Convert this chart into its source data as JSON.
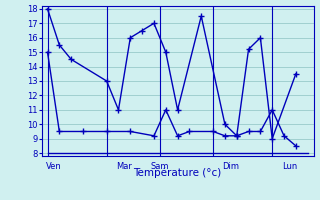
{
  "title": "Température (°c)",
  "bg_color": "#d0f0f0",
  "grid_color": "#a0d0d0",
  "line_color": "#0000bb",
  "ylim": [
    7.8,
    18.2
  ],
  "yticks": [
    8,
    9,
    10,
    11,
    12,
    13,
    14,
    15,
    16,
    17,
    18
  ],
  "x_labels": [
    "Ven",
    "",
    "Mar",
    "Sam",
    "",
    "Dim",
    "",
    "Lun"
  ],
  "x_tick_pos": [
    0,
    3,
    6,
    9,
    12,
    15,
    18,
    21
  ],
  "x_day_labels": [
    "Ven",
    "Mar",
    "Sam",
    "Dim",
    "Lun"
  ],
  "x_day_pos": [
    0.5,
    6.5,
    9.5,
    15.5,
    20.5
  ],
  "xlim": [
    -0.5,
    22.5
  ],
  "series1_x": [
    0,
    1,
    2,
    5,
    6,
    7,
    8,
    9,
    10,
    11,
    13,
    15,
    16,
    17,
    18,
    19,
    21
  ],
  "series1_y": [
    18,
    15.5,
    14.5,
    13,
    11,
    16,
    16.5,
    17,
    15,
    11,
    17.5,
    10,
    9.2,
    15.2,
    16,
    9,
    13.5
  ],
  "series2_x": [
    0,
    1,
    3,
    5,
    7,
    9,
    10,
    11,
    12,
    14,
    15,
    16,
    17,
    18,
    19,
    20,
    21
  ],
  "series2_y": [
    15,
    9.5,
    9.5,
    9.5,
    9.5,
    9.2,
    11,
    9.2,
    9.5,
    9.5,
    9.2,
    9.2,
    9.5,
    9.5,
    11,
    9.2,
    8.5
  ],
  "series3_x": [
    0,
    22
  ],
  "series3_y": [
    8,
    8
  ],
  "marker": "+",
  "marker_size": 5,
  "linewidth": 1.0,
  "tick_fontsize": 6,
  "label_fontsize": 7.5
}
